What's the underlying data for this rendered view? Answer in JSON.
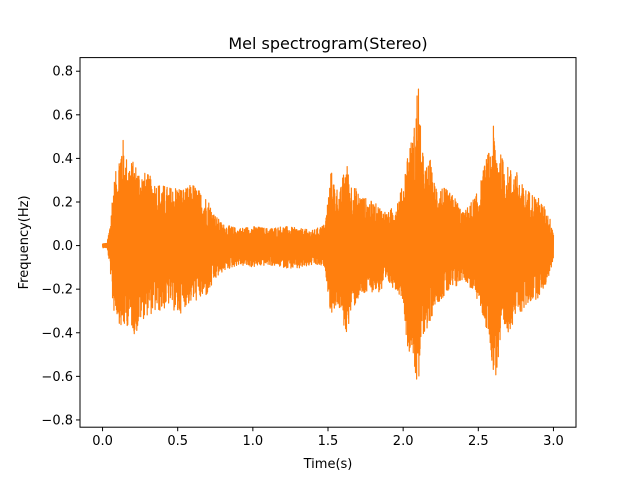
{
  "chart_data": {
    "type": "line",
    "title": "Mel spectrogram(Stereo)",
    "xlabel": "Time(s)",
    "ylabel": "Frequency(Hz)",
    "xlim": [
      -0.15,
      3.15
    ],
    "ylim": [
      -0.8333,
      0.8625
    ],
    "xticks": [
      0.0,
      0.5,
      1.0,
      1.5,
      2.0,
      2.5,
      3.0
    ],
    "xtick_labels": [
      "0.0",
      "0.5",
      "1.0",
      "1.5",
      "2.0",
      "2.5",
      "3.0"
    ],
    "yticks": [
      -0.8,
      -0.6,
      -0.4,
      -0.2,
      0.0,
      0.2,
      0.4,
      0.6,
      0.8
    ],
    "ytick_labels": [
      "−0.8",
      "−0.6",
      "−0.4",
      "−0.2",
      "0.0",
      "0.2",
      "0.4",
      "0.6",
      "0.8"
    ],
    "grid": false,
    "series": [
      {
        "color": "#ff7f0e",
        "envelope": {
          "x": [
            0.0,
            0.03,
            0.05,
            0.07,
            0.1,
            0.13,
            0.15,
            0.18,
            0.22,
            0.25,
            0.3,
            0.35,
            0.4,
            0.45,
            0.5,
            0.55,
            0.6,
            0.65,
            0.7,
            0.75,
            0.8,
            0.9,
            1.0,
            1.1,
            1.2,
            1.3,
            1.4,
            1.48,
            1.52,
            1.55,
            1.58,
            1.62,
            1.65,
            1.7,
            1.75,
            1.8,
            1.85,
            1.9,
            1.95,
            2.0,
            2.03,
            2.05,
            2.07,
            2.1,
            2.12,
            2.15,
            2.18,
            2.2,
            2.25,
            2.3,
            2.35,
            2.4,
            2.45,
            2.5,
            2.55,
            2.58,
            2.6,
            2.62,
            2.65,
            2.7,
            2.75,
            2.8,
            2.85,
            2.9,
            2.95,
            2.98,
            3.0
          ],
          "upper": [
            0.01,
            0.01,
            0.1,
            0.28,
            0.38,
            0.53,
            0.42,
            0.4,
            0.38,
            0.35,
            0.33,
            0.3,
            0.28,
            0.27,
            0.28,
            0.26,
            0.29,
            0.25,
            0.22,
            0.14,
            0.1,
            0.08,
            0.09,
            0.08,
            0.09,
            0.08,
            0.07,
            0.1,
            0.35,
            0.28,
            0.25,
            0.4,
            0.3,
            0.25,
            0.22,
            0.2,
            0.18,
            0.15,
            0.2,
            0.28,
            0.45,
            0.48,
            0.52,
            0.8,
            0.47,
            0.36,
            0.4,
            0.3,
            0.28,
            0.25,
            0.22,
            0.15,
            0.2,
            0.25,
            0.4,
            0.45,
            0.55,
            0.48,
            0.42,
            0.36,
            0.35,
            0.27,
            0.25,
            0.22,
            0.17,
            0.12,
            0.08
          ],
          "lower": [
            -0.01,
            -0.01,
            -0.1,
            -0.3,
            -0.33,
            -0.4,
            -0.38,
            -0.36,
            -0.42,
            -0.35,
            -0.32,
            -0.31,
            -0.3,
            -0.27,
            -0.33,
            -0.28,
            -0.26,
            -0.25,
            -0.23,
            -0.16,
            -0.12,
            -0.09,
            -0.1,
            -0.09,
            -0.1,
            -0.11,
            -0.09,
            -0.1,
            -0.33,
            -0.28,
            -0.3,
            -0.42,
            -0.32,
            -0.25,
            -0.23,
            -0.21,
            -0.22,
            -0.18,
            -0.2,
            -0.25,
            -0.49,
            -0.48,
            -0.52,
            -0.74,
            -0.45,
            -0.38,
            -0.4,
            -0.28,
            -0.25,
            -0.22,
            -0.2,
            -0.15,
            -0.2,
            -0.26,
            -0.38,
            -0.45,
            -0.62,
            -0.6,
            -0.48,
            -0.4,
            -0.33,
            -0.3,
            -0.26,
            -0.24,
            -0.18,
            -0.12,
            -0.06
          ]
        }
      }
    ]
  }
}
